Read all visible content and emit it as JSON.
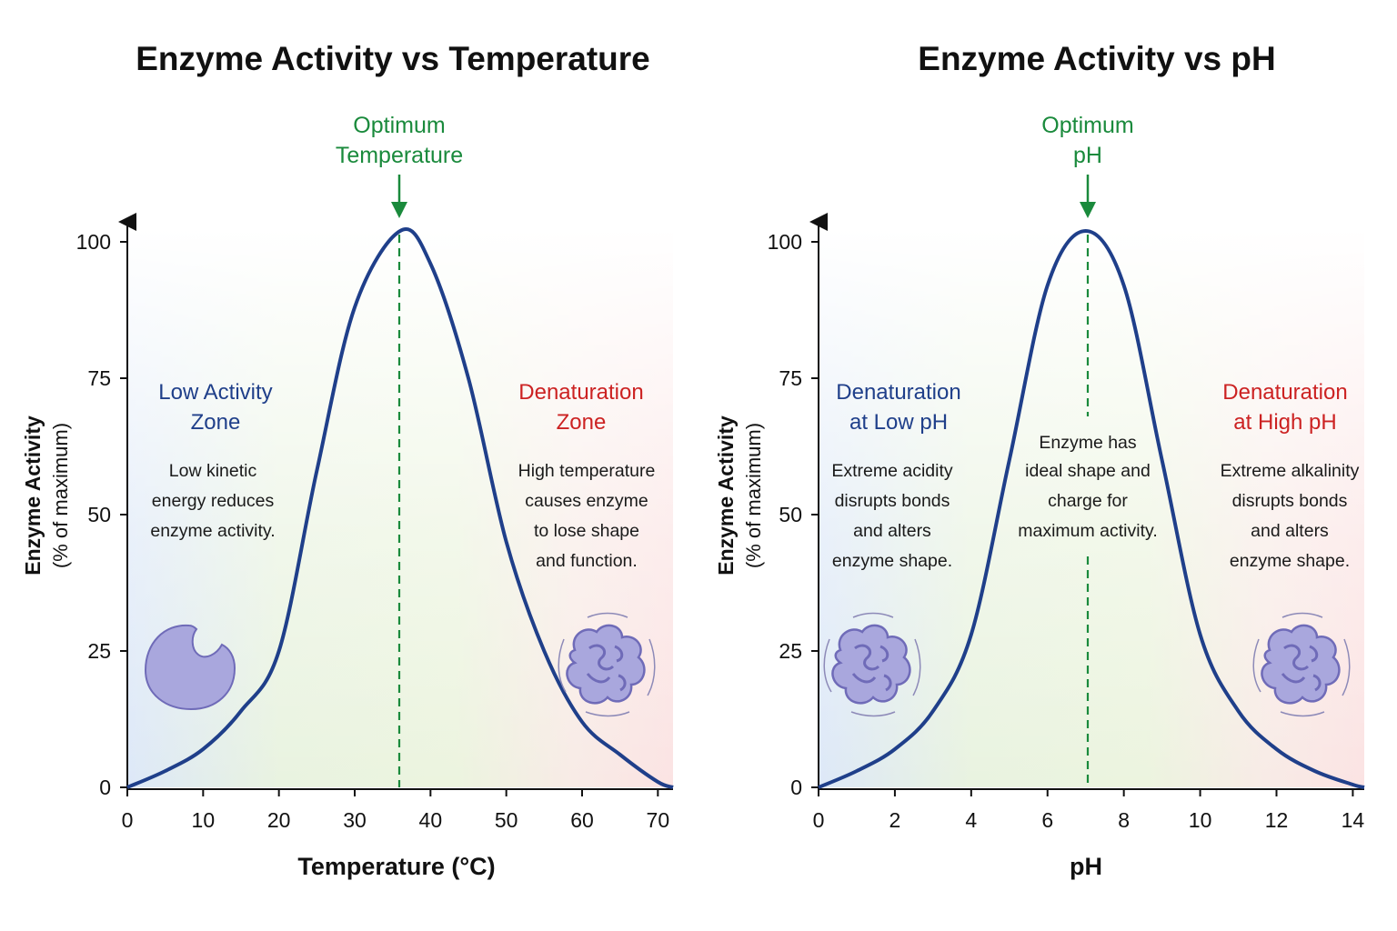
{
  "colors": {
    "curve": "#1f3f8a",
    "optimum": "#1a8a3c",
    "low_zone": "#1f3f8a",
    "denature_zone": "#cc2222",
    "protein": "#a9a7dd",
    "protein_stroke": "#6f6bb8"
  },
  "chart_data": [
    {
      "type": "line",
      "title": "Enzyme Activity vs Temperature",
      "xlabel": "Temperature (°C)",
      "ylabel": "Enzyme Activity",
      "ylabel_sub": "(% of maximum)",
      "xticks": [
        0,
        10,
        20,
        30,
        40,
        50,
        60,
        70
      ],
      "yticks": [
        0,
        25,
        50,
        75,
        100
      ],
      "xlim": [
        0,
        72
      ],
      "ylim": [
        0,
        100
      ],
      "x": [
        0,
        5,
        10,
        15,
        20,
        25,
        30,
        36,
        40,
        45,
        50,
        55,
        60,
        65,
        70,
        72
      ],
      "y": [
        0,
        3,
        7,
        14,
        25,
        58,
        88,
        102,
        96,
        75,
        45,
        25,
        12,
        6,
        1,
        0
      ],
      "optimum": {
        "x": 36,
        "label": [
          "Optimum",
          "Temperature"
        ]
      },
      "icons": [
        "enzyme-icon",
        "denatured-enzyme-icon"
      ],
      "zones": [
        {
          "title": [
            "Low Activity",
            "Zone"
          ],
          "text": [
            "Low kinetic",
            "energy reduces",
            "enzyme activity."
          ],
          "color": "#1f3f8a"
        },
        {
          "title": [
            "Denaturation",
            "Zone"
          ],
          "text": [
            "High temperature",
            "causes enzyme",
            "to lose shape",
            "and function."
          ],
          "color": "#cc2222"
        }
      ]
    },
    {
      "type": "line",
      "title": "Enzyme Activity vs pH",
      "xlabel": "pH",
      "ylabel": "Enzyme Activity",
      "ylabel_sub": "(% of maximum)",
      "xticks": [
        0,
        2,
        4,
        6,
        8,
        10,
        12,
        14
      ],
      "yticks": [
        0,
        25,
        50,
        75,
        100
      ],
      "xlim": [
        0,
        14.3
      ],
      "ylim": [
        0,
        100
      ],
      "x": [
        0,
        1,
        2,
        3,
        4,
        5,
        6,
        7,
        8,
        9,
        10,
        11,
        12,
        13,
        14,
        14.3
      ],
      "y": [
        0,
        3,
        7,
        14,
        28,
        60,
        92,
        102,
        92,
        60,
        28,
        14,
        7,
        3,
        0.5,
        0
      ],
      "optimum": {
        "x": 7,
        "label": [
          "Optimum",
          "pH"
        ]
      },
      "icons": [
        "denatured-enzyme-icon",
        "denatured-enzyme-icon"
      ],
      "center_text": [
        "Enzyme has",
        "ideal shape and",
        "charge for",
        "maximum activity."
      ],
      "zones": [
        {
          "title": [
            "Denaturation",
            "at Low pH"
          ],
          "text": [
            "Extreme acidity",
            "disrupts bonds",
            "and alters",
            "enzyme shape."
          ],
          "color": "#1f3f8a"
        },
        {
          "title": [
            "Denaturation",
            "at High pH"
          ],
          "text": [
            "Extreme alkalinity",
            "disrupts bonds",
            "and alters",
            "enzyme shape."
          ],
          "color": "#cc2222"
        }
      ]
    }
  ]
}
